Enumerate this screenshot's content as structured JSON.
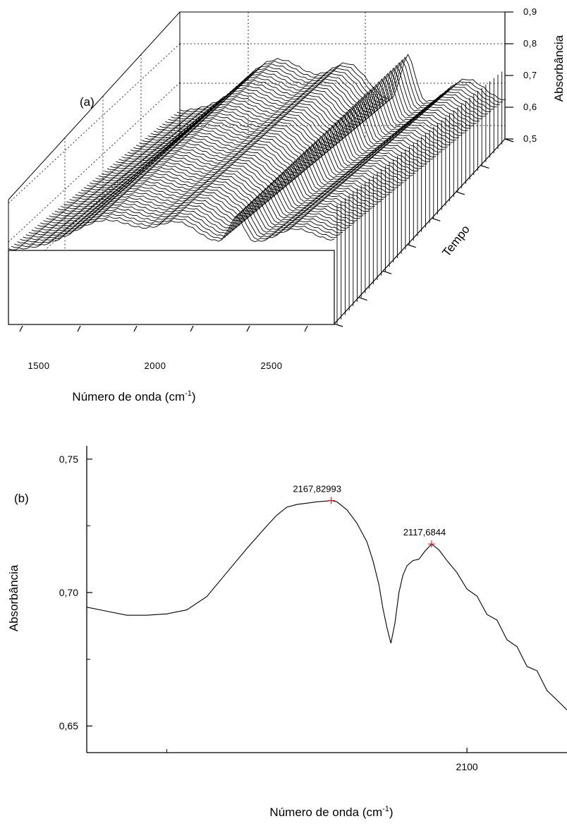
{
  "chart_data": [
    {
      "type": "line",
      "panel_label": "(a)",
      "projection": "3d-waterfall",
      "xlabel": "Número de onda (cm",
      "xlabel_sup": "-1",
      "xlabel_close": ")",
      "ylabel": "Tempo",
      "zlabel": "Absorbância",
      "x_ticks": [
        "1500",
        "2000",
        "2500"
      ],
      "z_ticks": [
        "0,9",
        "0,8",
        "0,7",
        "0,6",
        "0,5"
      ],
      "zlim": [
        0.5,
        0.9
      ],
      "grid": true,
      "features": [
        {
          "x": 1750,
          "z": 0.62
        },
        {
          "x": 2030,
          "z": 0.7
        },
        {
          "x": 2170,
          "z": 0.735
        },
        {
          "x": 2350,
          "z": 0.7
        }
      ]
    },
    {
      "type": "line",
      "panel_label": "(b)",
      "xlabel": "Número de onda (cm",
      "xlabel_sup": "-1",
      "xlabel_close": ")",
      "ylabel": "Absorbância",
      "x_ticks": [
        "2100"
      ],
      "y_ticks": [
        "0,75",
        "0,70",
        "0,65"
      ],
      "xlim": [
        2290,
        2050
      ],
      "ylim": [
        0.64,
        0.755
      ],
      "peaks": [
        {
          "label": "2167,82993",
          "x": 2167.83,
          "y": 0.7345
        },
        {
          "label": "2117,6844",
          "x": 2117.68,
          "y": 0.7182
        }
      ],
      "series": [
        {
          "x": [
            2290,
            2280,
            2270,
            2260,
            2250,
            2240,
            2230,
            2220,
            2210,
            2200,
            2195,
            2190,
            2185,
            2180,
            2175,
            2170,
            2167.83,
            2165,
            2160,
            2155,
            2150,
            2147,
            2144,
            2142,
            2140,
            2138,
            2136,
            2134,
            2132,
            2130,
            2127,
            2124,
            2121,
            2117.68,
            2114,
            2110,
            2105,
            2100,
            2095,
            2090,
            2085,
            2080,
            2075,
            2070,
            2065,
            2060,
            2055,
            2050
          ],
          "y": [
            0.6945,
            0.693,
            0.6915,
            0.6915,
            0.692,
            0.6935,
            0.6985,
            0.7075,
            0.7165,
            0.725,
            0.729,
            0.732,
            0.733,
            0.7335,
            0.734,
            0.7343,
            0.7345,
            0.734,
            0.731,
            0.726,
            0.719,
            0.712,
            0.703,
            0.694,
            0.687,
            0.681,
            0.6885,
            0.7,
            0.7065,
            0.71,
            0.712,
            0.7125,
            0.7155,
            0.7182,
            0.716,
            0.712,
            0.7075,
            0.7025,
            0.6975,
            0.693,
            0.6885,
            0.6835,
            0.6785,
            0.6735,
            0.6695,
            0.6645,
            0.6585,
            0.656
          ]
        }
      ]
    }
  ]
}
